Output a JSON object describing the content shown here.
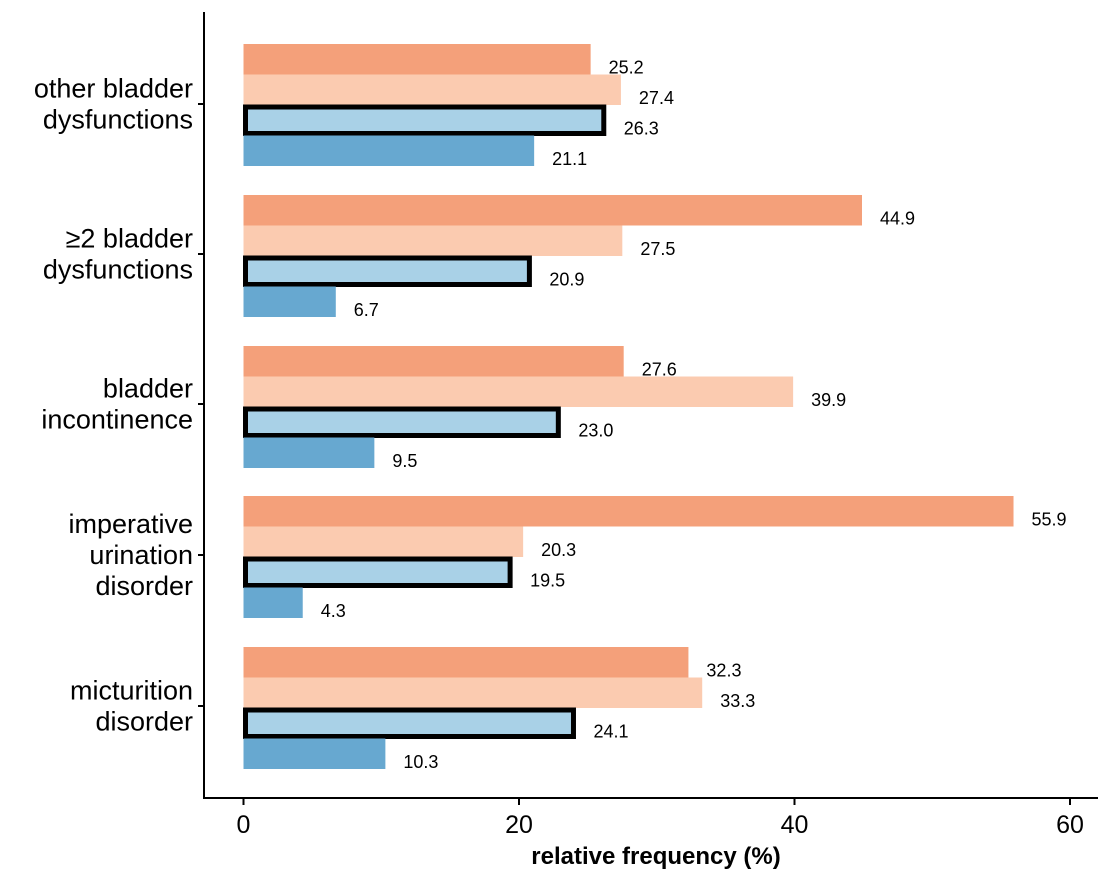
{
  "chart_data": {
    "type": "bar",
    "orientation": "horizontal",
    "title": "",
    "xlabel": "relative frequency (%)",
    "ylabel": "",
    "xlim": [
      0,
      60
    ],
    "x_ticks": [
      "0",
      "20",
      "40",
      "60"
    ],
    "grid": false,
    "legend": "none",
    "categories": [
      [
        "other bladder",
        "dysfunctions"
      ],
      [
        "≥2 bladder",
        "dysfunctions"
      ],
      [
        "bladder",
        "incontinence"
      ],
      [
        "imperative",
        "urination",
        "disorder"
      ],
      [
        "micturition",
        "disorder"
      ]
    ],
    "series": [
      {
        "color": "#f4a07a",
        "outlined": false,
        "values": [
          25.2,
          44.9,
          27.6,
          55.9,
          32.3
        ],
        "labels": [
          "25.2",
          "44.9",
          "27.6",
          "55.9",
          "32.3"
        ]
      },
      {
        "color": "#fbcbb0",
        "outlined": false,
        "values": [
          27.4,
          27.5,
          39.9,
          20.3,
          33.3
        ],
        "labels": [
          "27.4",
          "27.5",
          "39.9",
          "20.3",
          "33.3"
        ]
      },
      {
        "color": "#a9d1e7",
        "outlined": true,
        "values": [
          26.3,
          20.9,
          23.0,
          19.5,
          24.1
        ],
        "labels": [
          "26.3",
          "20.9",
          "23.0",
          "19.5",
          "24.1"
        ]
      },
      {
        "color": "#67a8d0",
        "outlined": false,
        "values": [
          21.1,
          6.7,
          9.5,
          4.3,
          10.3
        ],
        "labels": [
          "21.1",
          "6.7",
          "9.5",
          "4.3",
          "10.3"
        ]
      }
    ]
  }
}
